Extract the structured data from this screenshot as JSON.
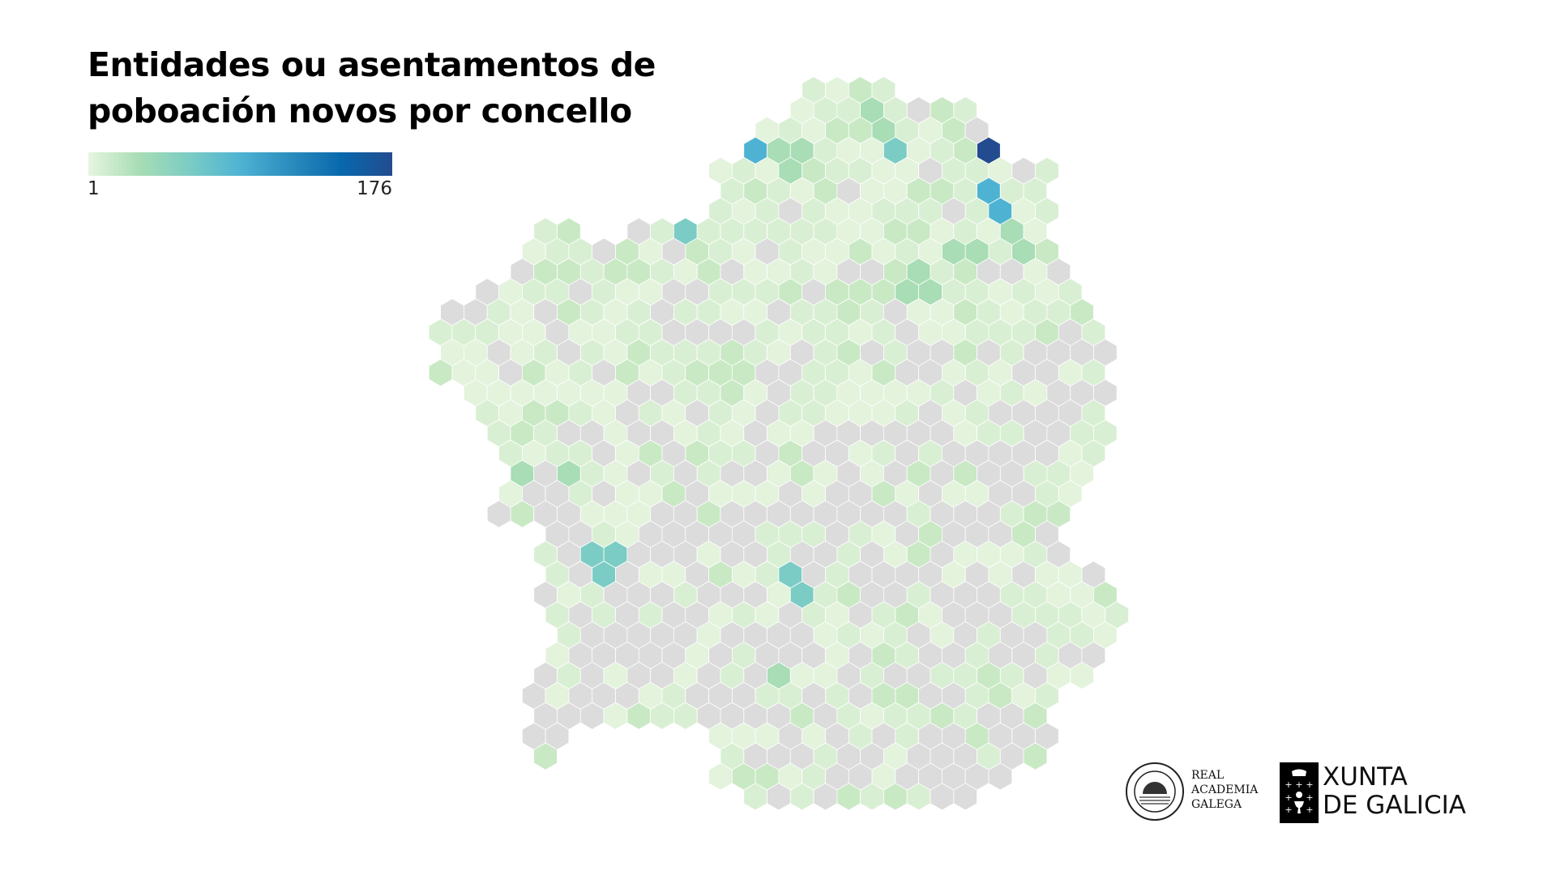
{
  "title": {
    "line1": "Entidades ou asentamentos de",
    "line2": "poboación novos por concello"
  },
  "chart_data": {
    "type": "choropleth",
    "title": "Entidades ou asentamentos de poboación novos por concello",
    "legend": {
      "min": "1",
      "max": "176",
      "placement": "top-left"
    },
    "colorscale": [
      "#e6f5e0",
      "#a8ddb5",
      "#7bccc4",
      "#4eb3d3",
      "#2b8cbe",
      "#0868ac",
      "#234b8f"
    ],
    "no_data_color": "#dcdcdc",
    "border_color": "#ffffff"
  },
  "logos": {
    "rag": {
      "line1": "REAL",
      "line2": "ACADEMIA",
      "line3": "GALEGA"
    },
    "xunta": {
      "line1": "XUNTA",
      "line2": "DE GALICIA"
    }
  }
}
